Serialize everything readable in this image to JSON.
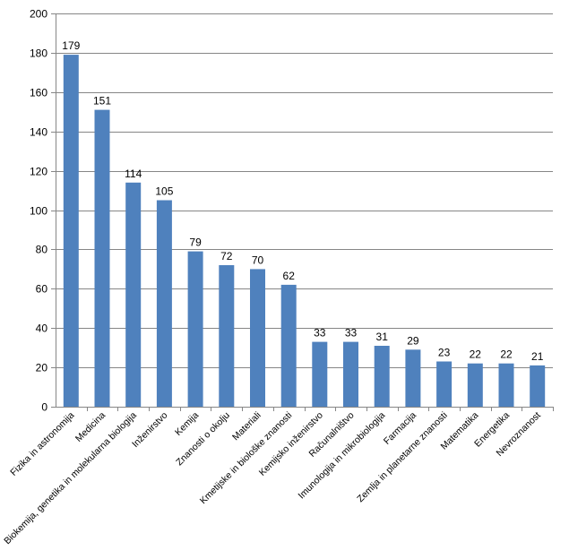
{
  "chart_data": {
    "type": "bar",
    "categories": [
      "Fizika in astronomija",
      "Medicina",
      "Biokemija, genetika in molekularna biologija",
      "Inženirstvo",
      "Kemija",
      "Znanosti o okolju",
      "Materiali",
      "Kmetijske in biološke znanosti",
      "Kemijsko inženirstvo",
      "Računalništvo",
      "Imunologija in mikrobiologija",
      "Farmacija",
      "Zemlja in planetarne znanosti",
      "Matematika",
      "Energetika",
      "Nevroznanost"
    ],
    "values": [
      179,
      151,
      114,
      105,
      79,
      72,
      70,
      62,
      33,
      33,
      31,
      29,
      23,
      22,
      22,
      21
    ],
    "ylim": [
      0,
      200
    ],
    "yticks": [
      0,
      20,
      40,
      60,
      80,
      100,
      120,
      140,
      160,
      180,
      200
    ],
    "grid": true,
    "legend": "none",
    "data_labels": true,
    "bar_color": "#4F81BD",
    "grid_color": "#868686"
  }
}
